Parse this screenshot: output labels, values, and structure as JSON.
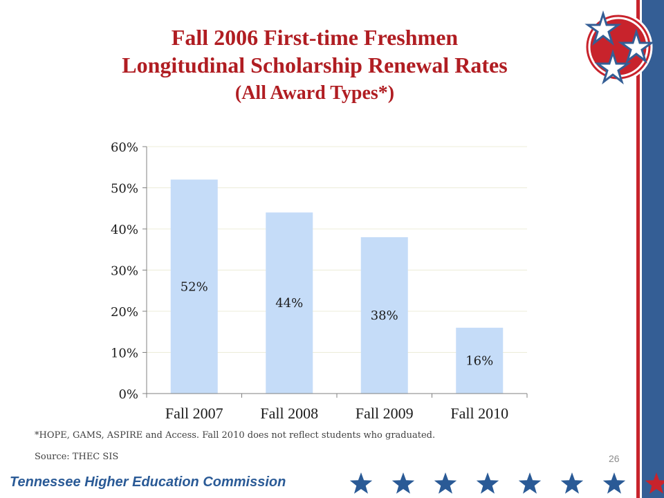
{
  "slide": {
    "title_line1": "Fall 2006 First-time Freshmen",
    "title_line2": "Longitudinal Scholarship Renewal Rates",
    "title_line3": "(All Award Types*)",
    "footnote": "*HOPE, GAMS, ASPIRE and Access. Fall 2010 does not reflect students who graduated.",
    "source": "Source: THEC SIS",
    "page_number": "26",
    "footer_text": "Tennessee Higher Education Commission"
  },
  "colors": {
    "title": "#b01d22",
    "bar": "#c5dcf8",
    "footer_blue": "#2a5a96",
    "stripe_red": "#c8232c",
    "stripe_blue": "#345e95"
  },
  "icons": {
    "logo": "tennessee-tristar-icon",
    "footer": "star-icon"
  },
  "chart_data": {
    "type": "bar",
    "categories": [
      "Fall 2007",
      "Fall 2008",
      "Fall 2009",
      "Fall 2010"
    ],
    "values": [
      52,
      44,
      38,
      16
    ],
    "value_labels": [
      "52%",
      "44%",
      "38%",
      "16%"
    ],
    "ylim": [
      0,
      60
    ],
    "yticks": [
      0,
      10,
      20,
      30,
      40,
      50,
      60
    ],
    "ytick_labels": [
      "0%",
      "10%",
      "20%",
      "30%",
      "40%",
      "50%",
      "60%"
    ],
    "grid": true,
    "legend": "none"
  }
}
